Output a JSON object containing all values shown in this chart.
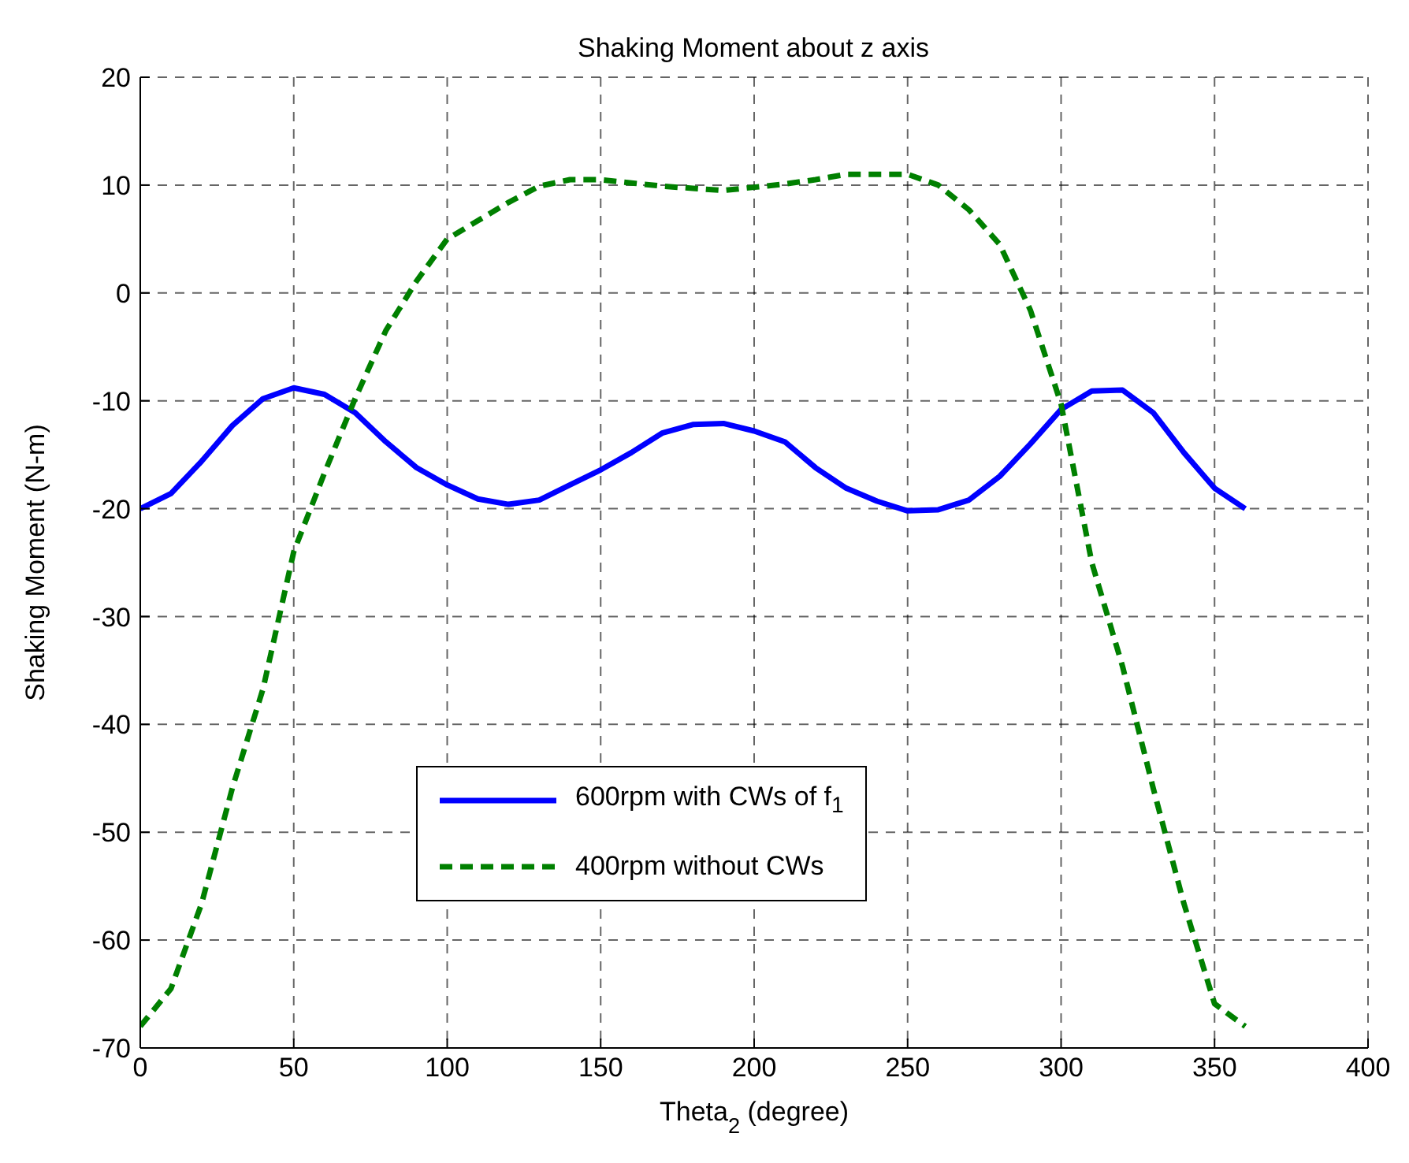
{
  "chart_data": {
    "type": "line",
    "title": "Shaking Moment about z axis",
    "xlabel": "Theta$_{2}$ (degree)",
    "ylabel": "Shaking Moment (N-m)",
    "x": [
      0,
      10,
      20,
      30,
      40,
      50,
      60,
      70,
      80,
      90,
      100,
      110,
      120,
      130,
      140,
      150,
      160,
      170,
      180,
      190,
      200,
      210,
      220,
      230,
      240,
      250,
      260,
      270,
      280,
      290,
      300,
      310,
      320,
      330,
      340,
      350,
      360
    ],
    "series": [
      {
        "name": "600rpm with CWs of f$_{1}$",
        "color": "#0000ff",
        "line_style": "solid",
        "values": [
          -20,
          -18.6,
          -15.6,
          -12.3,
          -9.8,
          -8.8,
          -9.4,
          -11.1,
          -13.8,
          -16.2,
          -17.8,
          -19.1,
          -19.6,
          -19.2,
          -17.8,
          -16.4,
          -14.8,
          -13,
          -12.2,
          -12.1,
          -12.8,
          -13.8,
          -16.2,
          -18.1,
          -19.3,
          -20.2,
          -20.1,
          -19.2,
          -17,
          -14,
          -10.8,
          -9.1,
          -9,
          -11.1,
          -14.8,
          -18.1,
          -20
        ]
      },
      {
        "name": "400rpm without CWs",
        "color": "#008000",
        "line_style": "dashed",
        "values": [
          -68,
          -64.5,
          -56.6,
          -45.9,
          -36.7,
          -24,
          -16.7,
          -9.8,
          -3.5,
          1.1,
          5,
          6.7,
          8.4,
          9.9,
          10.5,
          10.5,
          10.2,
          9.9,
          9.7,
          9.5,
          9.8,
          10.1,
          10.5,
          11,
          11,
          11,
          10,
          7.7,
          4.5,
          -1.6,
          -10.3,
          -25,
          -34.6,
          -45.9,
          -56.6,
          -65.9,
          -68
        ]
      }
    ],
    "xlim": [
      0,
      400
    ],
    "xticks": [
      0,
      50,
      100,
      150,
      200,
      250,
      300,
      350,
      400
    ],
    "ylim": [
      -70,
      20
    ],
    "yticks": [
      -70,
      -60,
      -50,
      -40,
      -30,
      -20,
      -10,
      0,
      10,
      20
    ],
    "grid": true,
    "legend": "bottom",
    "marker": "none"
  }
}
